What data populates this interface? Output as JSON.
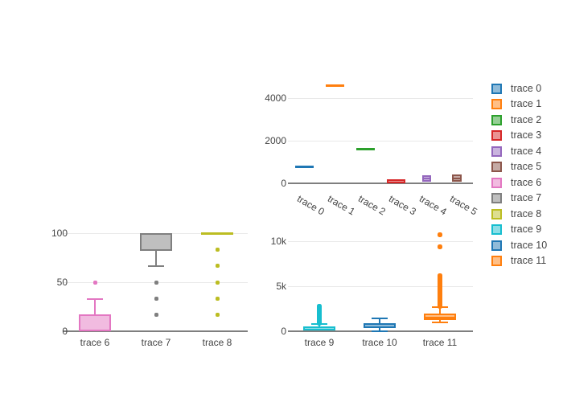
{
  "canvas": {
    "background": "#ffffff"
  },
  "legend": {
    "items": [
      {
        "label": "trace 0",
        "color": "#1f77b4"
      },
      {
        "label": "trace 1",
        "color": "#ff7f0e"
      },
      {
        "label": "trace 2",
        "color": "#2ca02c"
      },
      {
        "label": "trace 3",
        "color": "#d62728"
      },
      {
        "label": "trace 4",
        "color": "#9467bd"
      },
      {
        "label": "trace 5",
        "color": "#8c564b"
      },
      {
        "label": "trace 6",
        "color": "#e377c2"
      },
      {
        "label": "trace 7",
        "color": "#7f7f7f"
      },
      {
        "label": "trace 8",
        "color": "#bcbd22"
      },
      {
        "label": "trace 9",
        "color": "#17becf"
      },
      {
        "label": "trace 10",
        "color": "#1f77b4"
      },
      {
        "label": "trace 11",
        "color": "#ff7f0e"
      }
    ]
  },
  "chart_data": [
    {
      "id": "top-right",
      "type": "box",
      "title": "",
      "categories": [
        "trace 0",
        "trace 1",
        "trace 2",
        "trace 3",
        "trace 4",
        "trace 5"
      ],
      "tick_angle": 30,
      "ylim": [
        0,
        5000
      ],
      "grid": true,
      "yticks": [
        {
          "v": 0,
          "label": "0"
        },
        {
          "v": 2000,
          "label": "2000"
        },
        {
          "v": 4000,
          "label": "4000"
        }
      ],
      "series": [
        {
          "name": "trace 0",
          "color": "#1f77b4",
          "stats": {
            "min": 790,
            "q1": 790,
            "median": 790,
            "q3": 790,
            "max": 790
          },
          "outliers": []
        },
        {
          "name": "trace 1",
          "color": "#ff7f0e",
          "stats": {
            "min": 4600,
            "q1": 4600,
            "median": 4600,
            "q3": 4600,
            "max": 4600
          },
          "outliers": []
        },
        {
          "name": "trace 2",
          "color": "#2ca02c",
          "stats": {
            "min": 1590,
            "q1": 1590,
            "median": 1590,
            "q3": 1590,
            "max": 1590
          },
          "outliers": []
        },
        {
          "name": "trace 3",
          "color": "#d62728",
          "stats": {
            "min": 10,
            "q1": 10,
            "median": 60,
            "q3": 200,
            "max": 200
          },
          "outliers": []
        },
        {
          "name": "trace 4",
          "color": "#9467bd",
          "stats": {
            "min": 30,
            "q1": 90,
            "median": 230,
            "q3": 370,
            "max": 420
          },
          "outliers": []
        },
        {
          "name": "trace 5",
          "color": "#8c564b",
          "stats": {
            "min": 0,
            "q1": 60,
            "median": 220,
            "q3": 400,
            "max": 470
          },
          "outliers": []
        }
      ]
    },
    {
      "id": "bottom-left",
      "type": "box",
      "title": "",
      "categories": [
        "trace 6",
        "trace 7",
        "trace 8"
      ],
      "tick_angle": 0,
      "ylim": [
        0,
        104
      ],
      "grid": true,
      "yticks": [
        {
          "v": 0,
          "label": "0"
        },
        {
          "v": 50,
          "label": "50"
        },
        {
          "v": 100,
          "label": "100"
        }
      ],
      "series": [
        {
          "name": "trace 6",
          "color": "#e377c2",
          "stats": {
            "min": 0,
            "q1": 0,
            "median": 0,
            "q3": 17,
            "max": 33
          },
          "outliers": [
            50
          ]
        },
        {
          "name": "trace 7",
          "color": "#7f7f7f",
          "stats": {
            "min": 66,
            "q1": 82,
            "median": 100,
            "q3": 100,
            "max": 100
          },
          "outliers": [
            50,
            33,
            17
          ]
        },
        {
          "name": "trace 8",
          "color": "#bcbd22",
          "stats": {
            "min": 100,
            "q1": 100,
            "median": 100,
            "q3": 100,
            "max": 100
          },
          "outliers": [
            83,
            67,
            50,
            33,
            17
          ]
        }
      ]
    },
    {
      "id": "bottom-right",
      "type": "box",
      "title": "",
      "categories": [
        "trace 9",
        "trace 10",
        "trace 11"
      ],
      "tick_angle": 0,
      "ylim": [
        0,
        11300
      ],
      "grid": true,
      "yticks": [
        {
          "v": 0,
          "label": "0"
        },
        {
          "v": 5000,
          "label": "5k"
        },
        {
          "v": 10000,
          "label": "10k"
        }
      ],
      "series": [
        {
          "name": "trace 9",
          "color": "#17becf",
          "stats": {
            "min": 50,
            "q1": 50,
            "median": 120,
            "q3": 550,
            "max": 800
          },
          "outliers": [
            900,
            975,
            1050,
            1125,
            1200,
            1275,
            1350,
            1425,
            1500,
            1575,
            1650,
            1725,
            1800,
            1875,
            1950,
            2025,
            2100,
            2175,
            2250,
            2325,
            2400,
            2475,
            2550,
            2625,
            2700,
            2775
          ]
        },
        {
          "name": "trace 10",
          "color": "#1f77b4",
          "stats": {
            "min": 30,
            "q1": 400,
            "median": 580,
            "q3": 900,
            "max": 1430
          },
          "outliers": []
        },
        {
          "name": "trace 11",
          "color": "#ff7f0e",
          "stats": {
            "min": 950,
            "q1": 1250,
            "median": 1550,
            "q3": 1950,
            "max": 2680
          },
          "outliers": [
            2800,
            2900,
            3000,
            3100,
            3200,
            3300,
            3400,
            3500,
            3600,
            3700,
            3800,
            3900,
            4000,
            4100,
            4200,
            4300,
            4400,
            4500,
            4600,
            4700,
            4800,
            4900,
            5000,
            5100,
            5200,
            5300,
            5400,
            5500,
            5600,
            5700,
            5800,
            6000,
            6150,
            9400,
            10700
          ]
        }
      ]
    }
  ]
}
